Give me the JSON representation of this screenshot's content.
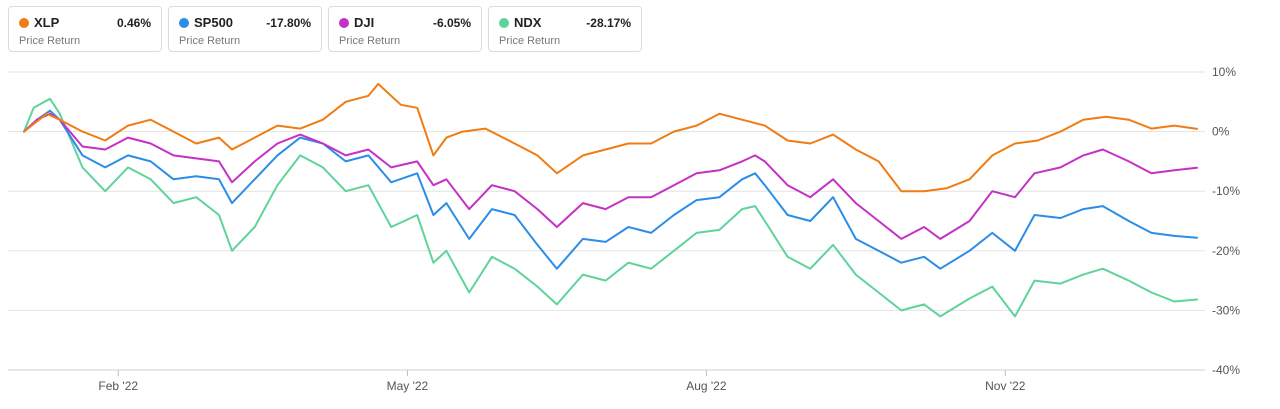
{
  "legend": [
    {
      "symbol": "XLP",
      "value": "0.46%",
      "subtitle": "Price Return",
      "color": "#f07c12"
    },
    {
      "symbol": "SP500",
      "value": "-17.80%",
      "subtitle": "Price Return",
      "color": "#2a8de8"
    },
    {
      "symbol": "DJI",
      "value": "-6.05%",
      "subtitle": "Price Return",
      "color": "#c530c5"
    },
    {
      "symbol": "NDX",
      "value": "-28.17%",
      "subtitle": "Price Return",
      "color": "#5fd39a"
    }
  ],
  "chart_data": {
    "type": "line",
    "y_ticks": [
      "10%",
      "0%",
      "-10%",
      "-20%",
      "-30%",
      "-40%"
    ],
    "ylim": [
      -40,
      10
    ],
    "x_ticks": [
      {
        "label": "Feb '22",
        "date": "2022-02-01"
      },
      {
        "label": "May '22",
        "date": "2022-05-01"
      },
      {
        "label": "Aug '22",
        "date": "2022-08-01"
      },
      {
        "label": "Nov '22",
        "date": "2022-11-01"
      }
    ],
    "xlim": [
      "2022-01-03",
      "2022-12-30"
    ],
    "grid": "horizontal",
    "series": [
      {
        "name": "XLP",
        "color": "#f07c12",
        "points": [
          [
            "2022-01-03",
            0
          ],
          [
            "2022-01-10",
            3
          ],
          [
            "2022-01-14",
            2
          ],
          [
            "2022-01-21",
            0
          ],
          [
            "2022-01-28",
            -1.5
          ],
          [
            "2022-02-04",
            1
          ],
          [
            "2022-02-11",
            2
          ],
          [
            "2022-02-18",
            0
          ],
          [
            "2022-02-25",
            -2
          ],
          [
            "2022-03-04",
            -1
          ],
          [
            "2022-03-08",
            -3
          ],
          [
            "2022-03-15",
            -1
          ],
          [
            "2022-03-22",
            1
          ],
          [
            "2022-03-29",
            0.5
          ],
          [
            "2022-04-05",
            2
          ],
          [
            "2022-04-12",
            5
          ],
          [
            "2022-04-19",
            6
          ],
          [
            "2022-04-22",
            8
          ],
          [
            "2022-04-29",
            4.5
          ],
          [
            "2022-05-04",
            4
          ],
          [
            "2022-05-09",
            -4
          ],
          [
            "2022-05-13",
            -1
          ],
          [
            "2022-05-18",
            0
          ],
          [
            "2022-05-25",
            0.5
          ],
          [
            "2022-06-03",
            -2
          ],
          [
            "2022-06-10",
            -4
          ],
          [
            "2022-06-16",
            -7
          ],
          [
            "2022-06-24",
            -4
          ],
          [
            "2022-07-01",
            -3
          ],
          [
            "2022-07-08",
            -2
          ],
          [
            "2022-07-15",
            -2
          ],
          [
            "2022-07-22",
            0
          ],
          [
            "2022-07-29",
            1
          ],
          [
            "2022-08-05",
            3
          ],
          [
            "2022-08-12",
            2
          ],
          [
            "2022-08-19",
            1
          ],
          [
            "2022-08-26",
            -1.5
          ],
          [
            "2022-09-02",
            -2
          ],
          [
            "2022-09-09",
            -0.5
          ],
          [
            "2022-09-16",
            -3
          ],
          [
            "2022-09-23",
            -5
          ],
          [
            "2022-09-30",
            -10
          ],
          [
            "2022-10-07",
            -10
          ],
          [
            "2022-10-14",
            -9.5
          ],
          [
            "2022-10-21",
            -8
          ],
          [
            "2022-10-28",
            -4
          ],
          [
            "2022-11-04",
            -2
          ],
          [
            "2022-11-11",
            -1.5
          ],
          [
            "2022-11-18",
            0
          ],
          [
            "2022-11-25",
            2
          ],
          [
            "2022-12-02",
            2.5
          ],
          [
            "2022-12-09",
            2
          ],
          [
            "2022-12-16",
            0.5
          ],
          [
            "2022-12-23",
            1
          ],
          [
            "2022-12-30",
            0.46
          ]
        ]
      },
      {
        "name": "SP500",
        "color": "#2a8de8",
        "points": [
          [
            "2022-01-03",
            0
          ],
          [
            "2022-01-07",
            2
          ],
          [
            "2022-01-11",
            3.5
          ],
          [
            "2022-01-14",
            2
          ],
          [
            "2022-01-21",
            -4
          ],
          [
            "2022-01-28",
            -6
          ],
          [
            "2022-02-04",
            -4
          ],
          [
            "2022-02-11",
            -5
          ],
          [
            "2022-02-18",
            -8
          ],
          [
            "2022-02-25",
            -7.5
          ],
          [
            "2022-03-04",
            -8
          ],
          [
            "2022-03-08",
            -12
          ],
          [
            "2022-03-15",
            -8
          ],
          [
            "2022-03-22",
            -4
          ],
          [
            "2022-03-29",
            -1
          ],
          [
            "2022-04-05",
            -2
          ],
          [
            "2022-04-12",
            -5
          ],
          [
            "2022-04-19",
            -4
          ],
          [
            "2022-04-26",
            -8.5
          ],
          [
            "2022-05-04",
            -7
          ],
          [
            "2022-05-09",
            -14
          ],
          [
            "2022-05-13",
            -12
          ],
          [
            "2022-05-20",
            -18
          ],
          [
            "2022-05-27",
            -13
          ],
          [
            "2022-06-03",
            -14
          ],
          [
            "2022-06-10",
            -19
          ],
          [
            "2022-06-16",
            -23
          ],
          [
            "2022-06-24",
            -18
          ],
          [
            "2022-07-01",
            -18.5
          ],
          [
            "2022-07-08",
            -16
          ],
          [
            "2022-07-15",
            -17
          ],
          [
            "2022-07-22",
            -14
          ],
          [
            "2022-07-29",
            -11.5
          ],
          [
            "2022-08-05",
            -11
          ],
          [
            "2022-08-12",
            -8
          ],
          [
            "2022-08-16",
            -7
          ],
          [
            "2022-08-19",
            -9
          ],
          [
            "2022-08-26",
            -14
          ],
          [
            "2022-09-02",
            -15
          ],
          [
            "2022-09-09",
            -11
          ],
          [
            "2022-09-16",
            -18
          ],
          [
            "2022-09-23",
            -20
          ],
          [
            "2022-09-30",
            -22
          ],
          [
            "2022-10-07",
            -21
          ],
          [
            "2022-10-12",
            -23
          ],
          [
            "2022-10-21",
            -20
          ],
          [
            "2022-10-28",
            -17
          ],
          [
            "2022-11-04",
            -20
          ],
          [
            "2022-11-10",
            -14
          ],
          [
            "2022-11-18",
            -14.5
          ],
          [
            "2022-11-25",
            -13
          ],
          [
            "2022-12-01",
            -12.5
          ],
          [
            "2022-12-09",
            -15
          ],
          [
            "2022-12-16",
            -17
          ],
          [
            "2022-12-23",
            -17.5
          ],
          [
            "2022-12-30",
            -17.8
          ]
        ]
      },
      {
        "name": "DJI",
        "color": "#c530c5",
        "points": [
          [
            "2022-01-03",
            0
          ],
          [
            "2022-01-07",
            2
          ],
          [
            "2022-01-11",
            3
          ],
          [
            "2022-01-14",
            2
          ],
          [
            "2022-01-21",
            -2.5
          ],
          [
            "2022-01-28",
            -3
          ],
          [
            "2022-02-04",
            -1
          ],
          [
            "2022-02-11",
            -2
          ],
          [
            "2022-02-18",
            -4
          ],
          [
            "2022-02-25",
            -4.5
          ],
          [
            "2022-03-04",
            -5
          ],
          [
            "2022-03-08",
            -8.5
          ],
          [
            "2022-03-15",
            -5
          ],
          [
            "2022-03-22",
            -2
          ],
          [
            "2022-03-29",
            -0.5
          ],
          [
            "2022-04-05",
            -2
          ],
          [
            "2022-04-12",
            -4
          ],
          [
            "2022-04-19",
            -3
          ],
          [
            "2022-04-26",
            -6
          ],
          [
            "2022-05-04",
            -5
          ],
          [
            "2022-05-09",
            -9
          ],
          [
            "2022-05-13",
            -8
          ],
          [
            "2022-05-20",
            -13
          ],
          [
            "2022-05-27",
            -9
          ],
          [
            "2022-06-03",
            -10
          ],
          [
            "2022-06-10",
            -13
          ],
          [
            "2022-06-16",
            -16
          ],
          [
            "2022-06-24",
            -12
          ],
          [
            "2022-07-01",
            -13
          ],
          [
            "2022-07-08",
            -11
          ],
          [
            "2022-07-15",
            -11
          ],
          [
            "2022-07-22",
            -9
          ],
          [
            "2022-07-29",
            -7
          ],
          [
            "2022-08-05",
            -6.5
          ],
          [
            "2022-08-12",
            -5
          ],
          [
            "2022-08-16",
            -4
          ],
          [
            "2022-08-19",
            -5
          ],
          [
            "2022-08-26",
            -9
          ],
          [
            "2022-09-02",
            -11
          ],
          [
            "2022-09-09",
            -8
          ],
          [
            "2022-09-16",
            -12
          ],
          [
            "2022-09-23",
            -15
          ],
          [
            "2022-09-30",
            -18
          ],
          [
            "2022-10-07",
            -16
          ],
          [
            "2022-10-12",
            -18
          ],
          [
            "2022-10-21",
            -15
          ],
          [
            "2022-10-28",
            -10
          ],
          [
            "2022-11-04",
            -11
          ],
          [
            "2022-11-10",
            -7
          ],
          [
            "2022-11-18",
            -6
          ],
          [
            "2022-11-25",
            -4
          ],
          [
            "2022-12-01",
            -3
          ],
          [
            "2022-12-09",
            -5
          ],
          [
            "2022-12-16",
            -7
          ],
          [
            "2022-12-23",
            -6.5
          ],
          [
            "2022-12-30",
            -6.05
          ]
        ]
      },
      {
        "name": "NDX",
        "color": "#5fd39a",
        "points": [
          [
            "2022-01-03",
            0
          ],
          [
            "2022-01-06",
            4
          ],
          [
            "2022-01-11",
            5.5
          ],
          [
            "2022-01-14",
            3
          ],
          [
            "2022-01-21",
            -6
          ],
          [
            "2022-01-28",
            -10
          ],
          [
            "2022-02-04",
            -6
          ],
          [
            "2022-02-11",
            -8
          ],
          [
            "2022-02-18",
            -12
          ],
          [
            "2022-02-25",
            -11
          ],
          [
            "2022-03-04",
            -14
          ],
          [
            "2022-03-08",
            -20
          ],
          [
            "2022-03-15",
            -16
          ],
          [
            "2022-03-22",
            -9
          ],
          [
            "2022-03-29",
            -4
          ],
          [
            "2022-04-05",
            -6
          ],
          [
            "2022-04-12",
            -10
          ],
          [
            "2022-04-19",
            -9
          ],
          [
            "2022-04-26",
            -16
          ],
          [
            "2022-05-04",
            -14
          ],
          [
            "2022-05-09",
            -22
          ],
          [
            "2022-05-13",
            -20
          ],
          [
            "2022-05-20",
            -27
          ],
          [
            "2022-05-27",
            -21
          ],
          [
            "2022-06-03",
            -23
          ],
          [
            "2022-06-10",
            -26
          ],
          [
            "2022-06-16",
            -29
          ],
          [
            "2022-06-24",
            -24
          ],
          [
            "2022-07-01",
            -25
          ],
          [
            "2022-07-08",
            -22
          ],
          [
            "2022-07-15",
            -23
          ],
          [
            "2022-07-22",
            -20
          ],
          [
            "2022-07-29",
            -17
          ],
          [
            "2022-08-05",
            -16.5
          ],
          [
            "2022-08-12",
            -13
          ],
          [
            "2022-08-16",
            -12.5
          ],
          [
            "2022-08-19",
            -15
          ],
          [
            "2022-08-26",
            -21
          ],
          [
            "2022-09-02",
            -23
          ],
          [
            "2022-09-09",
            -19
          ],
          [
            "2022-09-16",
            -24
          ],
          [
            "2022-09-23",
            -27
          ],
          [
            "2022-09-30",
            -30
          ],
          [
            "2022-10-07",
            -29
          ],
          [
            "2022-10-12",
            -31
          ],
          [
            "2022-10-21",
            -28
          ],
          [
            "2022-10-28",
            -26
          ],
          [
            "2022-11-04",
            -31
          ],
          [
            "2022-11-10",
            -25
          ],
          [
            "2022-11-18",
            -25.5
          ],
          [
            "2022-11-25",
            -24
          ],
          [
            "2022-12-01",
            -23
          ],
          [
            "2022-12-09",
            -25
          ],
          [
            "2022-12-16",
            -27
          ],
          [
            "2022-12-23",
            -28.5
          ],
          [
            "2022-12-30",
            -28.17
          ]
        ]
      }
    ]
  }
}
